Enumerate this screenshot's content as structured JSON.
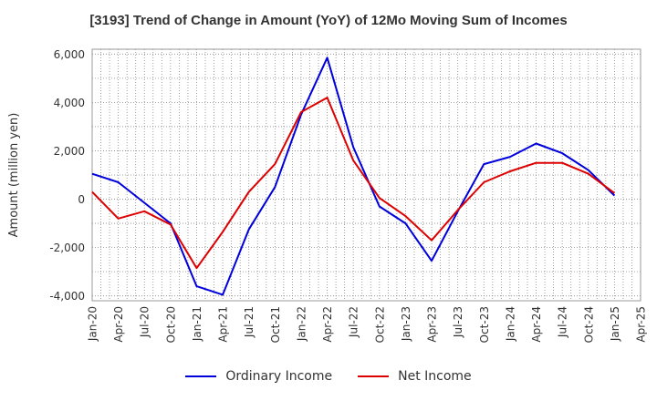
{
  "chart_data": {
    "type": "line",
    "title": "[3193]  Trend of Change in Amount (YoY) of 12Mo Moving Sum of Incomes",
    "xlabel": "",
    "ylabel": "Amount (million yen)",
    "ylim": [
      -4200,
      6200
    ],
    "yticks": [
      -4000,
      -2000,
      0,
      2000,
      4000,
      6000
    ],
    "ytick_labels": [
      "-4,000",
      "-2,000",
      "0",
      "2,000",
      "4,000",
      "6,000"
    ],
    "xtick_labels": [
      "Jan-20",
      "Apr-20",
      "Jul-20",
      "Oct-20",
      "Jan-21",
      "Apr-21",
      "Jul-21",
      "Oct-21",
      "Jan-22",
      "Apr-22",
      "Jul-22",
      "Oct-22",
      "Jan-23",
      "Apr-23",
      "Jul-23",
      "Oct-23",
      "Jan-24",
      "Apr-24",
      "Jul-24",
      "Oct-24",
      "Jan-25",
      "Apr-25"
    ],
    "x": [
      "Jan-20",
      "Apr-20",
      "Jul-20",
      "Oct-20",
      "Jan-21",
      "Apr-21",
      "Jul-21",
      "Oct-21",
      "Jan-22",
      "Apr-22",
      "Jul-22",
      "Oct-22",
      "Jan-23",
      "Apr-23",
      "Jul-23",
      "Oct-23",
      "Jan-24",
      "Apr-24",
      "Jul-24",
      "Oct-24",
      "Jan-25"
    ],
    "grid": true,
    "legend_position": "bottom-center",
    "series": [
      {
        "name": "Ordinary Income",
        "color": "#0000dd",
        "values": [
          1050,
          700,
          -150,
          -1000,
          -3600,
          -3950,
          -1250,
          500,
          3500,
          5850,
          2150,
          -300,
          -1000,
          -2550,
          -500,
          1450,
          1750,
          2300,
          1900,
          1200,
          150
        ]
      },
      {
        "name": "Net Income",
        "color": "#dd0000",
        "values": [
          300,
          -800,
          -500,
          -1050,
          -2850,
          -1350,
          300,
          1450,
          3600,
          4200,
          1600,
          50,
          -700,
          -1700,
          -450,
          700,
          1150,
          1500,
          1500,
          1050,
          250
        ]
      }
    ]
  }
}
